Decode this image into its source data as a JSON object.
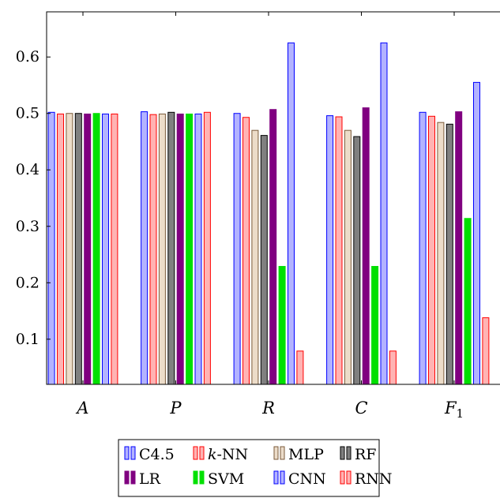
{
  "chart_data": {
    "type": "bar",
    "title": "",
    "xlabel": "",
    "ylabel": "",
    "categories": [
      "A",
      "P",
      "R",
      "C",
      "F1"
    ],
    "ylim": [
      0.02,
      0.68
    ],
    "yticks": [
      0.1,
      0.2,
      0.3,
      0.4,
      0.5,
      0.6
    ],
    "grid": false,
    "legend_position": "bottom",
    "series": [
      {
        "name": "C4.5",
        "fill": "#b3b3ff",
        "stroke": "#0000ff",
        "values": [
          0.502,
          0.503,
          0.5,
          0.496,
          0.502
        ]
      },
      {
        "name": "k-NN",
        "fill": "#ffb3b3",
        "stroke": "#ff0000",
        "values": [
          0.499,
          0.498,
          0.493,
          0.494,
          0.495
        ]
      },
      {
        "name": "MLP",
        "fill": "#ecdcc9",
        "stroke": "#7a5a3a",
        "values": [
          0.5,
          0.499,
          0.47,
          0.47,
          0.484
        ]
      },
      {
        "name": "RF",
        "fill": "#808080",
        "stroke": "#000000",
        "values": [
          0.5,
          0.502,
          0.461,
          0.459,
          0.481
        ]
      },
      {
        "name": "LR",
        "fill": "#800080",
        "stroke": "#800080",
        "values": [
          0.499,
          0.499,
          0.507,
          0.51,
          0.503
        ]
      },
      {
        "name": "SVM",
        "fill": "#00e000",
        "stroke": "#00e000",
        "values": [
          0.5,
          0.499,
          0.229,
          0.229,
          0.314
        ]
      },
      {
        "name": "CNN",
        "fill": "#b3b3ff",
        "stroke": "#0000ff",
        "values": [
          0.499,
          0.499,
          0.625,
          0.625,
          0.555
        ]
      },
      {
        "name": "RNN",
        "fill": "#ffb3b3",
        "stroke": "#ff0000",
        "values": [
          0.499,
          0.502,
          0.079,
          0.079,
          0.138
        ]
      }
    ]
  }
}
